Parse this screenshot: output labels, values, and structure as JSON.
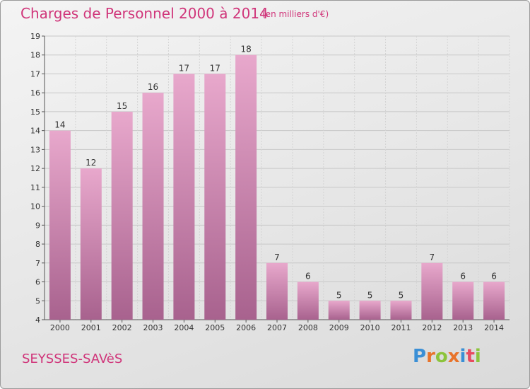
{
  "header": {
    "title": "Charges de Personnel 2000 à 2014",
    "subtitle": "(en milliers d'€)"
  },
  "footer": {
    "commune": "SEYSSES-SAVèS",
    "logo_text": "Proxiti"
  },
  "colors": {
    "accent": "#d0357a",
    "bar_top": "#e8a8cc",
    "bar_bottom": "#a8628e",
    "logo_letters": [
      "#3a8fd6",
      "#e8732a",
      "#8cc43c",
      "#e8732a",
      "#3a8fd6",
      "#e84a5f",
      "#8cc43c"
    ]
  },
  "chart_data": {
    "type": "bar",
    "title": "Charges de Personnel 2000 à 2014",
    "subtitle": "(en milliers d'€)",
    "categories": [
      "2000",
      "2001",
      "2002",
      "2003",
      "2004",
      "2005",
      "2006",
      "2007",
      "2008",
      "2009",
      "2010",
      "2011",
      "2012",
      "2013",
      "2014"
    ],
    "values": [
      14,
      12,
      15,
      16,
      17,
      17,
      18,
      7,
      6,
      5,
      5,
      5,
      7,
      6,
      6
    ],
    "ylim": [
      4,
      19
    ],
    "yticks": [
      4,
      5,
      6,
      7,
      8,
      9,
      10,
      11,
      12,
      13,
      14,
      15,
      16,
      17,
      18,
      19
    ],
    "grid": true,
    "xlabel": "",
    "ylabel": ""
  }
}
